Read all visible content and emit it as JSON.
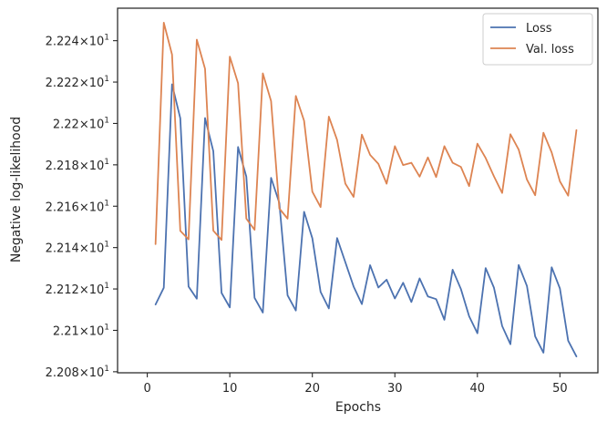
{
  "chart_data": {
    "type": "line",
    "xlabel": "Epochs",
    "ylabel": "Negative log-likelihood",
    "xlim": [
      -3.6,
      54.6
    ],
    "ylim": [
      22.0795,
      22.2557
    ],
    "x_ticks": [
      0,
      10,
      20,
      30,
      40,
      50
    ],
    "x_tick_labels": [
      "0",
      "10",
      "20",
      "30",
      "40",
      "50"
    ],
    "y_ticks": [
      22.08,
      22.1,
      22.12,
      22.14,
      22.16,
      22.18,
      22.2,
      22.22,
      22.24
    ],
    "y_tick_mantissas": [
      "2.208",
      "2.21",
      "2.212",
      "2.214",
      "2.216",
      "2.218",
      "2.22",
      "2.222",
      "2.224"
    ],
    "y_tick_exponent_base": "×10",
    "y_tick_exponent": "1",
    "grid": false,
    "legend_position": "top-right",
    "series": [
      {
        "name": "Loss",
        "color": "#4c72b0",
        "x": [
          1,
          2,
          3,
          4,
          5,
          6,
          7,
          8,
          9,
          10,
          11,
          12,
          13,
          14,
          15,
          16,
          17,
          18,
          19,
          20,
          21,
          22,
          23,
          24,
          25,
          26,
          27,
          28,
          29,
          30,
          31,
          32,
          33,
          34,
          35,
          36,
          37,
          38,
          39,
          40,
          41,
          42,
          43,
          44,
          45,
          46,
          47,
          48,
          49,
          50,
          51,
          52
        ],
        "values": [
          22.1125,
          22.1206,
          22.2189,
          22.2025,
          22.1212,
          22.1153,
          22.2026,
          22.1866,
          22.1181,
          22.1111,
          22.1886,
          22.1743,
          22.1157,
          22.1086,
          22.1737,
          22.1616,
          22.1169,
          22.1096,
          22.1573,
          22.1445,
          22.1186,
          22.1106,
          22.1446,
          22.1329,
          22.1212,
          22.1127,
          22.1315,
          22.1207,
          22.1245,
          22.1154,
          22.123,
          22.1137,
          22.1251,
          22.1164,
          22.1151,
          22.1051,
          22.1293,
          22.12,
          22.1068,
          22.0986,
          22.1301,
          22.1207,
          22.1021,
          22.0933,
          22.1316,
          22.1215,
          22.0971,
          22.0892,
          22.1305,
          22.1202,
          22.095,
          22.0874
        ]
      },
      {
        "name": "Val. loss",
        "color": "#dd8452",
        "x": [
          1,
          2,
          3,
          4,
          5,
          6,
          7,
          8,
          9,
          10,
          11,
          12,
          13,
          14,
          15,
          16,
          17,
          18,
          19,
          20,
          21,
          22,
          23,
          24,
          25,
          26,
          27,
          28,
          29,
          30,
          31,
          32,
          33,
          34,
          35,
          36,
          37,
          38,
          39,
          40,
          41,
          42,
          43,
          44,
          45,
          46,
          47,
          48,
          49,
          50,
          51,
          52
        ],
        "values": [
          22.1417,
          22.2487,
          22.2333,
          22.1481,
          22.144,
          22.2405,
          22.2264,
          22.1482,
          22.1437,
          22.2323,
          22.2194,
          22.154,
          22.1486,
          22.2242,
          22.2108,
          22.1589,
          22.154,
          22.2133,
          22.2013,
          22.167,
          22.1596,
          22.2033,
          22.192,
          22.1709,
          22.1645,
          22.1946,
          22.1848,
          22.1805,
          22.1709,
          22.189,
          22.1799,
          22.181,
          22.1743,
          22.1836,
          22.1741,
          22.189,
          22.181,
          22.179,
          22.1697,
          22.1902,
          22.1833,
          22.1745,
          22.1664,
          22.1948,
          22.1874,
          22.1729,
          22.1653,
          22.1955,
          22.186,
          22.172,
          22.1651,
          22.1968
        ]
      }
    ]
  }
}
